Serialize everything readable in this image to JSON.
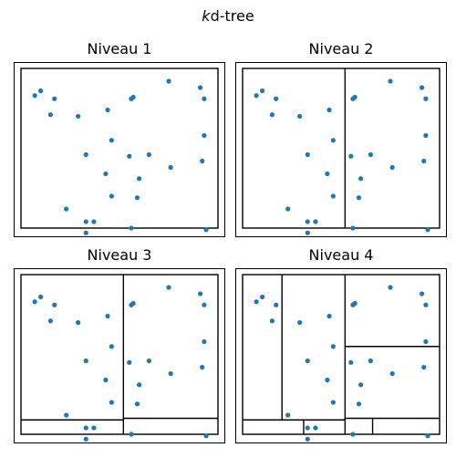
{
  "figure": {
    "title_italic": "k",
    "title_rest": "d-tree"
  },
  "colors": {
    "points": "#1f77b4",
    "lines": "#000000"
  },
  "point_set": [
    [
      0.07,
      0.83
    ],
    [
      0.1,
      0.86
    ],
    [
      0.17,
      0.81
    ],
    [
      0.15,
      0.71
    ],
    [
      0.29,
      0.7
    ],
    [
      0.44,
      0.74
    ],
    [
      0.56,
      0.81
    ],
    [
      0.57,
      0.82
    ],
    [
      0.75,
      0.92
    ],
    [
      0.91,
      0.88
    ],
    [
      0.93,
      0.81
    ],
    [
      0.46,
      0.55
    ],
    [
      0.93,
      0.58
    ],
    [
      0.33,
      0.46
    ],
    [
      0.55,
      0.45
    ],
    [
      0.65,
      0.46
    ],
    [
      0.43,
      0.34
    ],
    [
      0.6,
      0.31
    ],
    [
      0.76,
      0.38
    ],
    [
      0.92,
      0.42
    ],
    [
      0.46,
      0.2
    ],
    [
      0.59,
      0.19
    ],
    [
      0.23,
      0.12
    ],
    [
      0.33,
      0.04
    ],
    [
      0.37,
      0.04
    ],
    [
      0.56,
      0.0
    ],
    [
      0.94,
      -0.01
    ],
    [
      0.33,
      -0.03
    ]
  ],
  "panels": [
    {
      "title": "Niveau 1",
      "splits": []
    },
    {
      "title": "Niveau 2",
      "splits": [
        {
          "dir": "v",
          "at": 0.52,
          "from": 0.0,
          "to": 1.0
        }
      ]
    },
    {
      "title": "Niveau 3",
      "splits": [
        {
          "dir": "v",
          "at": 0.52,
          "from": 0.0,
          "to": 1.0
        },
        {
          "dir": "h",
          "at": 0.09,
          "from": 0.0,
          "to": 0.52
        },
        {
          "dir": "h",
          "at": 0.1,
          "from": 0.52,
          "to": 1.0
        }
      ]
    },
    {
      "title": "Niveau 4",
      "splits": [
        {
          "dir": "v",
          "at": 0.52,
          "from": 0.0,
          "to": 1.0
        },
        {
          "dir": "h",
          "at": 0.09,
          "from": 0.0,
          "to": 0.52
        },
        {
          "dir": "h",
          "at": 0.1,
          "from": 0.52,
          "to": 1.0
        },
        {
          "dir": "v",
          "at": 0.2,
          "from": 0.09,
          "to": 1.0
        },
        {
          "dir": "v",
          "at": 0.31,
          "from": 0.0,
          "to": 0.09
        },
        {
          "dir": "h",
          "at": 0.55,
          "from": 0.52,
          "to": 1.0
        },
        {
          "dir": "v",
          "at": 0.66,
          "from": 0.0,
          "to": 0.1
        }
      ]
    }
  ]
}
